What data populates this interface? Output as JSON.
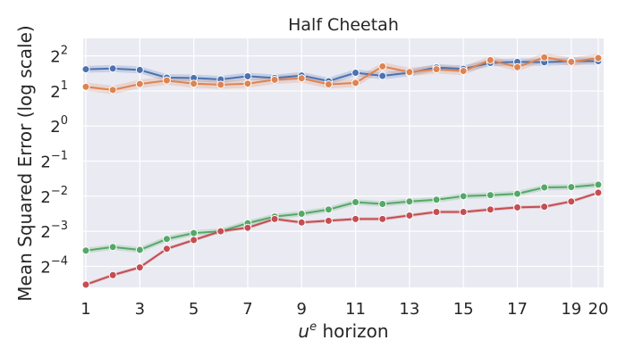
{
  "chart_data": {
    "type": "line",
    "title": "Half Cheetah",
    "xlabel_base": "u",
    "xlabel_sup": "e",
    "xlabel_rest": " horizon",
    "ylabel": "Mean Squared Error (log scale)",
    "yscale": "log2",
    "ylim_log2": [
      -4.6,
      2.5
    ],
    "xlim": [
      0.9,
      20.2
    ],
    "x": [
      1,
      2,
      3,
      4,
      5,
      6,
      7,
      8,
      9,
      10,
      11,
      12,
      13,
      14,
      15,
      16,
      17,
      18,
      19,
      20
    ],
    "xticks": [
      {
        "value": 1,
        "label": "1"
      },
      {
        "value": 3,
        "label": "3"
      },
      {
        "value": 5,
        "label": "5"
      },
      {
        "value": 7,
        "label": "7"
      },
      {
        "value": 9,
        "label": "9"
      },
      {
        "value": 11,
        "label": "11"
      },
      {
        "value": 13,
        "label": "13"
      },
      {
        "value": 15,
        "label": "15"
      },
      {
        "value": 17,
        "label": "17"
      },
      {
        "value": 19,
        "label": "19"
      },
      {
        "value": 20,
        "label": "20"
      }
    ],
    "yticks": [
      {
        "exp": 2,
        "base": "2",
        "sup": "2"
      },
      {
        "exp": 1,
        "base": "2",
        "sup": "1"
      },
      {
        "exp": 0,
        "base": "2",
        "sup": "0"
      },
      {
        "exp": -1,
        "base": "2",
        "sup": "−1"
      },
      {
        "exp": -2,
        "base": "2",
        "sup": "−2"
      },
      {
        "exp": -3,
        "base": "2",
        "sup": "−3"
      },
      {
        "exp": -4,
        "base": "2",
        "sup": "−4"
      }
    ],
    "grid": true,
    "legend": "none",
    "series": [
      {
        "name": "blue",
        "color": "#4c72b0",
        "log2_values": [
          1.62,
          1.64,
          1.6,
          1.38,
          1.37,
          1.33,
          1.42,
          1.37,
          1.44,
          1.28,
          1.52,
          1.43,
          1.52,
          1.67,
          1.63,
          1.8,
          1.83,
          1.82,
          1.85,
          1.85
        ],
        "band": 0.1
      },
      {
        "name": "orange",
        "color": "#dd8452",
        "log2_values": [
          1.12,
          1.03,
          1.2,
          1.3,
          1.21,
          1.18,
          1.21,
          1.32,
          1.36,
          1.19,
          1.23,
          1.7,
          1.54,
          1.62,
          1.57,
          1.88,
          1.68,
          1.96,
          1.83,
          1.94
        ],
        "band": 0.12
      },
      {
        "name": "green",
        "color": "#55a868",
        "log2_values": [
          -3.55,
          -3.45,
          -3.53,
          -3.22,
          -3.05,
          -3.0,
          -2.77,
          -2.58,
          -2.5,
          -2.38,
          -2.17,
          -2.22,
          -2.15,
          -2.1,
          -2.0,
          -1.97,
          -1.93,
          -1.75,
          -1.74,
          -1.67
        ],
        "band": 0.08
      },
      {
        "name": "red",
        "color": "#c44e52",
        "log2_values": [
          -4.52,
          -4.25,
          -4.03,
          -3.5,
          -3.25,
          -3.0,
          -2.9,
          -2.65,
          -2.75,
          -2.7,
          -2.65,
          -2.65,
          -2.55,
          -2.45,
          -2.45,
          -2.38,
          -2.32,
          -2.3,
          -2.15,
          -1.9
        ],
        "band": 0.05
      }
    ]
  }
}
